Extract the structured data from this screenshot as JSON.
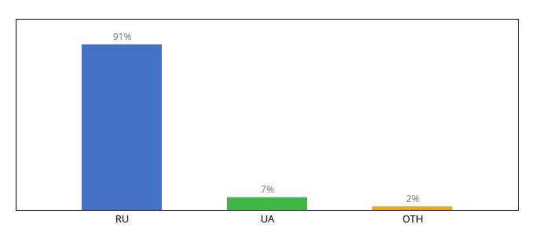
{
  "chart_data": {
    "type": "bar",
    "categories": [
      "RU",
      "UA",
      "OTH"
    ],
    "values": [
      91,
      7,
      2
    ],
    "value_labels": [
      "91%",
      "7%",
      "2%"
    ],
    "data_labels": true,
    "colors": [
      "#4472c4",
      "#3db843",
      "#f0a500"
    ],
    "ylim": [
      0,
      105
    ],
    "grid": false,
    "tick_labels": "x"
  }
}
